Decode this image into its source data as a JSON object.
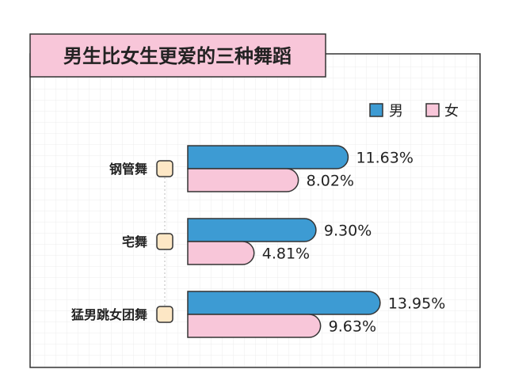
{
  "chart_data": {
    "type": "bar",
    "orientation": "horizontal",
    "title": "男生比女生更爱的三种舞蹈",
    "categories": [
      "钢管舞",
      "宅舞",
      "猛男跳女团舞"
    ],
    "series": [
      {
        "name": "男",
        "values": [
          11.63,
          9.3,
          13.95
        ],
        "labels": [
          "11.63%",
          "9.30%",
          "13.95%"
        ],
        "color": "#3d9bd3"
      },
      {
        "name": "女",
        "values": [
          8.02,
          4.81,
          9.63
        ],
        "labels": [
          "8.02%",
          "4.81%",
          "9.63%"
        ],
        "color": "#f8c6d9"
      }
    ],
    "xlim": [
      0,
      14.82
    ],
    "grid": true,
    "legend": "top-right"
  },
  "colors": {
    "title_bg": "#f8c6d9",
    "border": "#333333",
    "grid": "#ececec",
    "marker": "#fde7c5"
  }
}
